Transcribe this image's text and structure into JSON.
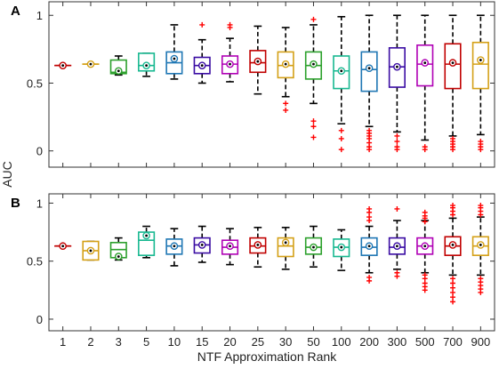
{
  "figure": {
    "ylabel": "AUC",
    "xlabel": "NTF Approximation Rank",
    "panel_a_label": "A",
    "panel_b_label": "B"
  },
  "chart_data": [
    {
      "panel": "A",
      "type": "box",
      "categories": [
        "1",
        "2",
        "3",
        "5",
        "10",
        "15",
        "20",
        "25",
        "30",
        "50",
        "100",
        "200",
        "300",
        "500",
        "700",
        "900"
      ],
      "colors": [
        "#c00000",
        "#d4a017",
        "#2ca02c",
        "#17b890",
        "#1f77b4",
        "#3a0ca3",
        "#b000b5",
        "#c00000",
        "#d4a017",
        "#2ca02c",
        "#17b890",
        "#1f77b4",
        "#3a0ca3",
        "#b000b5",
        "#c00000",
        "#d4a017"
      ],
      "ylim": [
        -0.12,
        1.1
      ],
      "yticks": [
        0,
        0.5,
        1
      ],
      "outlier_color": "#ff0000",
      "boxes": [
        {
          "whislo": 0.63,
          "q1": 0.63,
          "med": 0.63,
          "q3": 0.63,
          "whishi": 0.63,
          "mean": 0.63,
          "fliers": []
        },
        {
          "whislo": 0.64,
          "q1": 0.64,
          "med": 0.64,
          "q3": 0.64,
          "whishi": 0.64,
          "mean": 0.64,
          "fliers": []
        },
        {
          "whislo": 0.56,
          "q1": 0.57,
          "med": 0.58,
          "q3": 0.67,
          "whishi": 0.7,
          "mean": 0.59,
          "fliers": []
        },
        {
          "whislo": 0.55,
          "q1": 0.59,
          "med": 0.63,
          "q3": 0.72,
          "whishi": 0.72,
          "mean": 0.63,
          "fliers": []
        },
        {
          "whislo": 0.53,
          "q1": 0.57,
          "med": 0.65,
          "q3": 0.73,
          "whishi": 0.93,
          "mean": 0.68,
          "fliers": []
        },
        {
          "whislo": 0.5,
          "q1": 0.57,
          "med": 0.63,
          "q3": 0.69,
          "whishi": 0.82,
          "mean": 0.63,
          "fliers": [
            0.93
          ]
        },
        {
          "whislo": 0.51,
          "q1": 0.57,
          "med": 0.64,
          "q3": 0.7,
          "whishi": 0.83,
          "mean": 0.64,
          "fliers": [
            0.93,
            0.91
          ]
        },
        {
          "whislo": 0.42,
          "q1": 0.58,
          "med": 0.65,
          "q3": 0.74,
          "whishi": 0.92,
          "mean": 0.66,
          "fliers": []
        },
        {
          "whislo": 0.4,
          "q1": 0.54,
          "med": 0.63,
          "q3": 0.73,
          "whishi": 0.91,
          "mean": 0.64,
          "fliers": [
            0.35,
            0.3
          ]
        },
        {
          "whislo": 0.35,
          "q1": 0.53,
          "med": 0.63,
          "q3": 0.73,
          "whishi": 0.93,
          "mean": 0.64,
          "fliers": [
            0.97,
            0.22,
            0.18,
            0.1
          ]
        },
        {
          "whislo": 0.2,
          "q1": 0.46,
          "med": 0.59,
          "q3": 0.7,
          "whishi": 0.99,
          "mean": 0.59,
          "fliers": [
            0.15,
            0.09,
            0.01
          ]
        },
        {
          "whislo": 0.18,
          "q1": 0.44,
          "med": 0.6,
          "q3": 0.73,
          "whishi": 1.0,
          "mean": 0.61,
          "fliers": [
            0.15,
            0.13,
            0.11,
            0.09,
            0.06,
            0.03,
            0.01
          ]
        },
        {
          "whislo": 0.14,
          "q1": 0.47,
          "med": 0.62,
          "q3": 0.76,
          "whishi": 1.0,
          "mean": 0.62,
          "fliers": [
            0.11,
            0.07,
            0.03,
            0.01
          ]
        },
        {
          "whislo": 0.08,
          "q1": 0.48,
          "med": 0.64,
          "q3": 0.78,
          "whishi": 1.0,
          "mean": 0.65,
          "fliers": [
            0.03,
            0.01
          ]
        },
        {
          "whislo": 0.11,
          "q1": 0.46,
          "med": 0.64,
          "q3": 0.79,
          "whishi": 1.0,
          "mean": 0.65,
          "fliers": [
            0.09,
            0.07,
            0.05,
            0.03,
            0.01
          ]
        },
        {
          "whislo": 0.12,
          "q1": 0.46,
          "med": 0.64,
          "q3": 0.8,
          "whishi": 1.0,
          "mean": 0.67,
          "fliers": [
            0.07,
            0.05,
            0.03,
            0.01
          ]
        }
      ]
    },
    {
      "panel": "B",
      "type": "box",
      "categories": [
        "1",
        "2",
        "3",
        "5",
        "10",
        "15",
        "20",
        "25",
        "30",
        "50",
        "100",
        "200",
        "300",
        "500",
        "700",
        "900"
      ],
      "colors": [
        "#c00000",
        "#d4a017",
        "#2ca02c",
        "#17b890",
        "#1f77b4",
        "#3a0ca3",
        "#b000b5",
        "#c00000",
        "#d4a017",
        "#2ca02c",
        "#17b890",
        "#1f77b4",
        "#3a0ca3",
        "#b000b5",
        "#c00000",
        "#d4a017"
      ],
      "ylim": [
        -0.1,
        1.08
      ],
      "yticks": [
        0,
        0.5,
        1
      ],
      "outlier_color": "#ff0000",
      "boxes": [
        {
          "whislo": 0.63,
          "q1": 0.63,
          "med": 0.63,
          "q3": 0.63,
          "whishi": 0.63,
          "mean": 0.63,
          "fliers": []
        },
        {
          "whislo": 0.51,
          "q1": 0.51,
          "med": 0.59,
          "q3": 0.67,
          "whishi": 0.67,
          "mean": 0.59,
          "fliers": []
        },
        {
          "whislo": 0.51,
          "q1": 0.53,
          "med": 0.6,
          "q3": 0.66,
          "whishi": 0.7,
          "mean": 0.54,
          "fliers": []
        },
        {
          "whislo": 0.53,
          "q1": 0.55,
          "med": 0.68,
          "q3": 0.75,
          "whishi": 0.8,
          "mean": 0.72,
          "fliers": []
        },
        {
          "whislo": 0.46,
          "q1": 0.56,
          "med": 0.63,
          "q3": 0.69,
          "whishi": 0.78,
          "mean": 0.63,
          "fliers": []
        },
        {
          "whislo": 0.49,
          "q1": 0.57,
          "med": 0.64,
          "q3": 0.7,
          "whishi": 0.8,
          "mean": 0.64,
          "fliers": []
        },
        {
          "whislo": 0.47,
          "q1": 0.56,
          "med": 0.62,
          "q3": 0.68,
          "whishi": 0.78,
          "mean": 0.63,
          "fliers": []
        },
        {
          "whislo": 0.45,
          "q1": 0.57,
          "med": 0.63,
          "q3": 0.7,
          "whishi": 0.79,
          "mean": 0.64,
          "fliers": []
        },
        {
          "whislo": 0.43,
          "q1": 0.54,
          "med": 0.63,
          "q3": 0.7,
          "whishi": 0.79,
          "mean": 0.66,
          "fliers": []
        },
        {
          "whislo": 0.45,
          "q1": 0.56,
          "med": 0.62,
          "q3": 0.7,
          "whishi": 0.8,
          "mean": 0.62,
          "fliers": []
        },
        {
          "whislo": 0.42,
          "q1": 0.54,
          "med": 0.62,
          "q3": 0.69,
          "whishi": 0.77,
          "mean": 0.62,
          "fliers": []
        },
        {
          "whislo": 0.4,
          "q1": 0.55,
          "med": 0.62,
          "q3": 0.7,
          "whishi": 0.8,
          "mean": 0.63,
          "fliers": [
            0.95,
            0.92,
            0.88,
            0.85,
            0.36,
            0.33
          ]
        },
        {
          "whislo": 0.43,
          "q1": 0.56,
          "med": 0.62,
          "q3": 0.7,
          "whishi": 0.85,
          "mean": 0.63,
          "fliers": [
            0.95,
            0.4,
            0.37
          ]
        },
        {
          "whislo": 0.4,
          "q1": 0.56,
          "med": 0.63,
          "q3": 0.7,
          "whishi": 0.85,
          "mean": 0.63,
          "fliers": [
            0.92,
            0.89,
            0.87,
            0.84,
            0.38,
            0.35,
            0.31,
            0.28,
            0.25
          ]
        },
        {
          "whislo": 0.38,
          "q1": 0.55,
          "med": 0.63,
          "q3": 0.71,
          "whishi": 0.87,
          "mean": 0.64,
          "fliers": [
            0.98,
            0.96,
            0.93,
            0.9,
            0.35,
            0.31,
            0.27,
            0.23,
            0.19,
            0.15
          ]
        },
        {
          "whislo": 0.38,
          "q1": 0.55,
          "med": 0.63,
          "q3": 0.71,
          "whishi": 0.88,
          "mean": 0.64,
          "fliers": [
            0.98,
            0.96,
            0.93,
            0.9,
            0.35,
            0.32,
            0.29,
            0.26,
            0.23
          ]
        }
      ]
    }
  ]
}
